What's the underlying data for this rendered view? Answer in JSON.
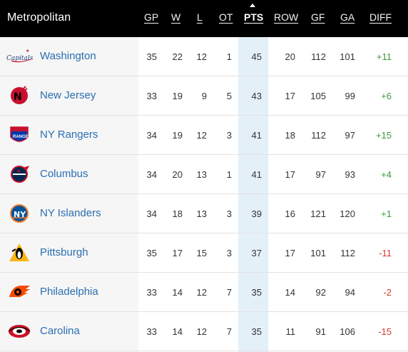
{
  "division": "Metropolitan",
  "columns": {
    "gp": "GP",
    "w": "W",
    "l": "L",
    "ot": "OT",
    "pts": "PTS",
    "row": "ROW",
    "gf": "GF",
    "ga": "GA",
    "diff": "DIFF"
  },
  "sorted_by": "PTS",
  "teams": [
    {
      "name": "Washington",
      "logo": "capitals-logo",
      "gp": "35",
      "w": "22",
      "l": "12",
      "ot": "1",
      "pts": "45",
      "row": "20",
      "gf": "112",
      "ga": "101",
      "diff": "+11"
    },
    {
      "name": "New Jersey",
      "logo": "devils-logo",
      "gp": "33",
      "w": "19",
      "l": "9",
      "ot": "5",
      "pts": "43",
      "row": "17",
      "gf": "105",
      "ga": "99",
      "diff": "+6"
    },
    {
      "name": "NY Rangers",
      "logo": "rangers-logo",
      "gp": "34",
      "w": "19",
      "l": "12",
      "ot": "3",
      "pts": "41",
      "row": "18",
      "gf": "112",
      "ga": "97",
      "diff": "+15"
    },
    {
      "name": "Columbus",
      "logo": "blue-jackets-logo",
      "gp": "34",
      "w": "20",
      "l": "13",
      "ot": "1",
      "pts": "41",
      "row": "17",
      "gf": "97",
      "ga": "93",
      "diff": "+4"
    },
    {
      "name": "NY Islanders",
      "logo": "islanders-logo",
      "gp": "34",
      "w": "18",
      "l": "13",
      "ot": "3",
      "pts": "39",
      "row": "16",
      "gf": "121",
      "ga": "120",
      "diff": "+1"
    },
    {
      "name": "Pittsburgh",
      "logo": "penguins-logo",
      "gp": "35",
      "w": "17",
      "l": "15",
      "ot": "3",
      "pts": "37",
      "row": "17",
      "gf": "101",
      "ga": "112",
      "diff": "-11"
    },
    {
      "name": "Philadelphia",
      "logo": "flyers-logo",
      "gp": "33",
      "w": "14",
      "l": "12",
      "ot": "7",
      "pts": "35",
      "row": "14",
      "gf": "92",
      "ga": "94",
      "diff": "-2"
    },
    {
      "name": "Carolina",
      "logo": "hurricanes-logo",
      "gp": "33",
      "w": "14",
      "l": "12",
      "ot": "7",
      "pts": "35",
      "row": "11",
      "gf": "91",
      "ga": "106",
      "diff": "-15"
    }
  ],
  "colors": {
    "header_bg": "#000000",
    "team_link": "#2a6fb0",
    "positive_diff": "#3a9b3a",
    "negative_diff": "#d23a2e",
    "pts_highlight": "#e4f0f8"
  }
}
